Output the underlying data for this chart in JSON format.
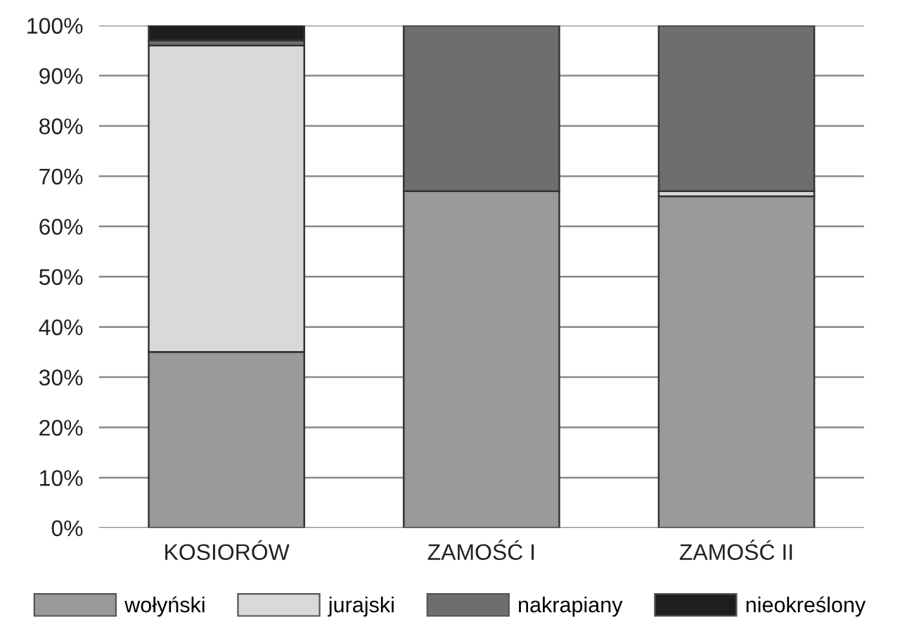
{
  "chart_data": {
    "type": "bar",
    "stacked": true,
    "categories": [
      "KOSIORÓW",
      "ZAMOŚĆ I",
      "ZAMOŚĆ II"
    ],
    "series": [
      {
        "name": "wołyński",
        "color": "#9a9a9a",
        "values": [
          35,
          67,
          66
        ]
      },
      {
        "name": "jurajski",
        "color": "#d9d9d9",
        "values": [
          61,
          null,
          1
        ]
      },
      {
        "name": "nakrapiany",
        "color": "#6e6e6e",
        "values": [
          1,
          33,
          33
        ]
      },
      {
        "name": "nieokreślony",
        "color": "#1e1e1e",
        "values": [
          3,
          null,
          null
        ]
      }
    ],
    "ylim": [
      0,
      100
    ],
    "yticks": [
      {
        "value": 0,
        "label": "0%"
      },
      {
        "value": 10,
        "label": "10%"
      },
      {
        "value": 20,
        "label": "20%"
      },
      {
        "value": 30,
        "label": "30%"
      },
      {
        "value": 40,
        "label": "40%"
      },
      {
        "value": 50,
        "label": "50%"
      },
      {
        "value": 60,
        "label": "60%"
      },
      {
        "value": 70,
        "label": "70%"
      },
      {
        "value": 80,
        "label": "80%"
      },
      {
        "value": 90,
        "label": "90%"
      },
      {
        "value": 100,
        "label": "100%"
      }
    ],
    "grid": "y",
    "legend": "bottom"
  }
}
